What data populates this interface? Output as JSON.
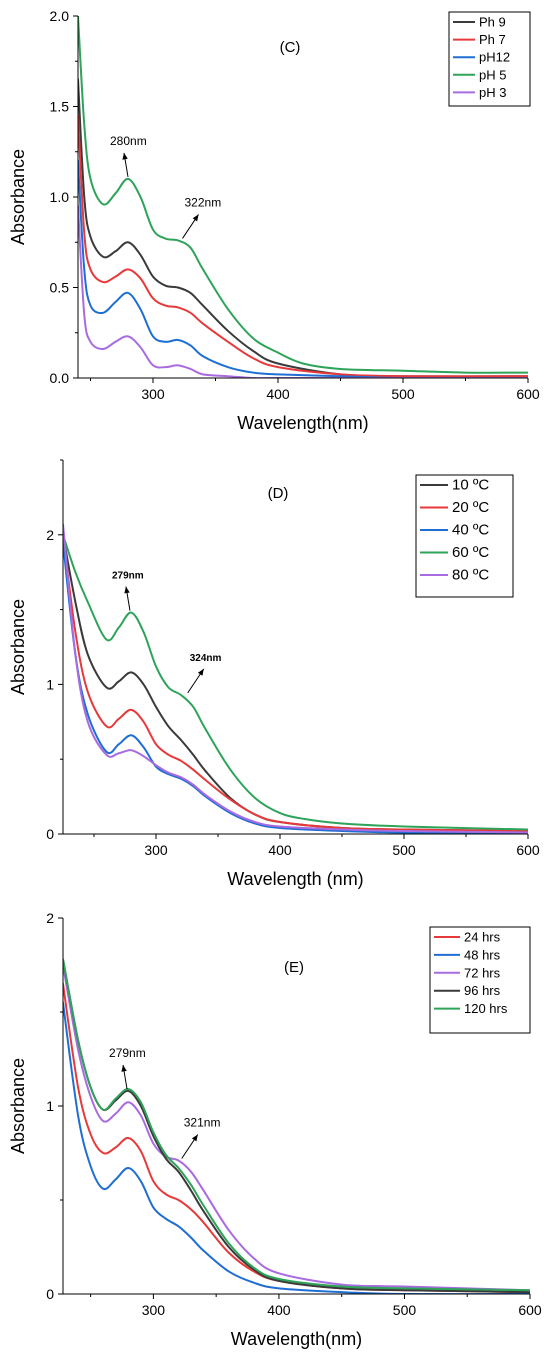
{
  "colors": {
    "black": "#3a3a3a",
    "red": "#e8393a",
    "blue": "#1f6ed4",
    "green": "#2ea35a",
    "purple": "#a86be0"
  },
  "chart_data": [
    {
      "type": "line",
      "title": "(C)",
      "xlabel": "Wavelength(nm)",
      "ylabel": "Absorbance",
      "xlim": [
        240,
        600
      ],
      "ylim": [
        0,
        2.0
      ],
      "xticks": [
        300,
        400,
        500,
        600
      ],
      "yticks": [
        0.0,
        0.5,
        1.0,
        1.5,
        2.0
      ],
      "ytick_labels": [
        "0.0",
        "0.5",
        "1.0",
        "1.5",
        "2.0"
      ],
      "grid": false,
      "legend_position": "top-right",
      "annotations": [
        {
          "text": "280nm",
          "x": 280,
          "y": 1.1
        },
        {
          "text": "322nm",
          "x": 322,
          "y": 0.76
        }
      ],
      "series": [
        {
          "name": "Ph 9",
          "color": "black",
          "x": [
            240,
            245,
            250,
            260,
            270,
            280,
            290,
            300,
            310,
            320,
            330,
            340,
            360,
            380,
            400,
            450,
            500,
            600
          ],
          "y": [
            1.65,
            1.0,
            0.78,
            0.67,
            0.7,
            0.75,
            0.68,
            0.56,
            0.51,
            0.5,
            0.47,
            0.4,
            0.26,
            0.15,
            0.08,
            0.02,
            0.01,
            0.01
          ]
        },
        {
          "name": "Ph 7",
          "color": "red",
          "x": [
            240,
            245,
            250,
            260,
            270,
            280,
            290,
            300,
            310,
            320,
            330,
            340,
            360,
            380,
            400,
            450,
            500,
            600
          ],
          "y": [
            1.45,
            0.8,
            0.6,
            0.53,
            0.56,
            0.6,
            0.55,
            0.44,
            0.4,
            0.39,
            0.36,
            0.3,
            0.2,
            0.11,
            0.06,
            0.02,
            0.01,
            0.01
          ]
        },
        {
          "name": "pH12",
          "color": "blue",
          "x": [
            240,
            245,
            250,
            260,
            270,
            280,
            290,
            300,
            310,
            320,
            330,
            340,
            360,
            380,
            400,
            450,
            500,
            600
          ],
          "y": [
            1.2,
            0.6,
            0.4,
            0.36,
            0.42,
            0.47,
            0.38,
            0.23,
            0.2,
            0.21,
            0.18,
            0.12,
            0.06,
            0.03,
            0.02,
            0.01,
            0.0,
            0.0
          ]
        },
        {
          "name": "pH 5",
          "color": "green",
          "x": [
            240,
            245,
            250,
            260,
            270,
            280,
            290,
            300,
            310,
            320,
            330,
            340,
            360,
            380,
            400,
            420,
            450,
            500,
            550,
            600
          ],
          "y": [
            2.0,
            1.4,
            1.1,
            0.96,
            1.02,
            1.1,
            1.0,
            0.82,
            0.77,
            0.76,
            0.72,
            0.6,
            0.38,
            0.22,
            0.14,
            0.08,
            0.05,
            0.04,
            0.03,
            0.03
          ]
        },
        {
          "name": "pH 3",
          "color": "purple",
          "x": [
            240,
            245,
            250,
            260,
            270,
            280,
            290,
            300,
            310,
            320,
            330,
            340,
            360,
            380,
            400,
            450,
            500,
            600
          ],
          "y": [
            0.95,
            0.35,
            0.2,
            0.16,
            0.2,
            0.23,
            0.17,
            0.07,
            0.06,
            0.07,
            0.05,
            0.02,
            0.01,
            0.0,
            0.0,
            0.0,
            0.0,
            0.0
          ]
        }
      ]
    },
    {
      "type": "line",
      "title": "(D)",
      "xlabel": "Wavelength (nm)",
      "ylabel": "Absorbance",
      "xlim": [
        225,
        600
      ],
      "ylim": [
        0,
        2.5
      ],
      "xticks": [
        300,
        400,
        500,
        600
      ],
      "yticks": [
        0,
        1,
        2
      ],
      "ytick_labels": [
        "0",
        "1",
        "2"
      ],
      "grid": false,
      "legend_position": "top-right",
      "annotations": [
        {
          "text": "279nm",
          "x": 279,
          "y": 1.48
        },
        {
          "text": "324nm",
          "x": 324,
          "y": 0.93
        }
      ],
      "series": [
        {
          "name": "10 ºC",
          "color": "black",
          "x": [
            225,
            235,
            245,
            260,
            270,
            280,
            290,
            300,
            310,
            320,
            330,
            340,
            360,
            380,
            400,
            450,
            500,
            600
          ],
          "y": [
            2.0,
            1.55,
            1.2,
            0.98,
            1.02,
            1.08,
            1.0,
            0.85,
            0.72,
            0.63,
            0.53,
            0.42,
            0.24,
            0.13,
            0.08,
            0.04,
            0.03,
            0.02
          ]
        },
        {
          "name": "20 ºC",
          "color": "red",
          "x": [
            225,
            235,
            245,
            260,
            270,
            280,
            290,
            300,
            310,
            320,
            330,
            340,
            360,
            380,
            400,
            450,
            500,
            600
          ],
          "y": [
            2.0,
            1.35,
            0.95,
            0.72,
            0.77,
            0.83,
            0.75,
            0.6,
            0.53,
            0.49,
            0.43,
            0.36,
            0.23,
            0.13,
            0.08,
            0.04,
            0.03,
            0.02
          ]
        },
        {
          "name": "40 ºC",
          "color": "blue",
          "x": [
            225,
            235,
            245,
            260,
            270,
            280,
            290,
            300,
            310,
            320,
            330,
            340,
            360,
            380,
            400,
            450,
            500,
            600
          ],
          "y": [
            1.95,
            1.2,
            0.8,
            0.55,
            0.6,
            0.66,
            0.58,
            0.45,
            0.4,
            0.37,
            0.32,
            0.25,
            0.14,
            0.07,
            0.04,
            0.02,
            0.01,
            0.01
          ]
        },
        {
          "name": "60 ºC",
          "color": "green",
          "x": [
            225,
            235,
            245,
            260,
            270,
            280,
            290,
            300,
            310,
            320,
            330,
            340,
            360,
            380,
            400,
            420,
            450,
            500,
            600
          ],
          "y": [
            2.0,
            1.75,
            1.55,
            1.3,
            1.38,
            1.48,
            1.35,
            1.12,
            0.98,
            0.93,
            0.85,
            0.7,
            0.43,
            0.24,
            0.14,
            0.1,
            0.07,
            0.05,
            0.03
          ]
        },
        {
          "name": "80 ºC",
          "color": "purple",
          "x": [
            225,
            235,
            245,
            260,
            270,
            280,
            290,
            300,
            310,
            320,
            330,
            340,
            360,
            380,
            400,
            450,
            500,
            600
          ],
          "y": [
            2.07,
            1.2,
            0.75,
            0.53,
            0.54,
            0.56,
            0.52,
            0.46,
            0.41,
            0.38,
            0.33,
            0.26,
            0.15,
            0.08,
            0.05,
            0.03,
            0.02,
            0.01
          ]
        }
      ]
    },
    {
      "type": "line",
      "title": "(E)",
      "xlabel": "Wavelength(nm)",
      "ylabel": "Absorbance",
      "xlim": [
        228,
        600
      ],
      "ylim": [
        0,
        2.0
      ],
      "xticks": [
        300,
        400,
        500,
        600
      ],
      "yticks": [
        0,
        1,
        2
      ],
      "ytick_labels": [
        "0",
        "1",
        "2"
      ],
      "grid": false,
      "legend_position": "top-right",
      "annotations": [
        {
          "text": "279nm",
          "x": 279,
          "y": 1.08
        },
        {
          "text": "321nm",
          "x": 321,
          "y": 0.71
        }
      ],
      "series": [
        {
          "name": "24 hrs",
          "color": "red",
          "x": [
            228,
            240,
            250,
            260,
            270,
            280,
            290,
            300,
            310,
            320,
            330,
            340,
            360,
            380,
            400,
            450,
            500,
            600
          ],
          "y": [
            1.65,
            1.1,
            0.85,
            0.75,
            0.78,
            0.83,
            0.76,
            0.6,
            0.53,
            0.5,
            0.45,
            0.38,
            0.22,
            0.12,
            0.07,
            0.03,
            0.02,
            0.01
          ]
        },
        {
          "name": "48 hrs",
          "color": "blue",
          "x": [
            228,
            240,
            250,
            260,
            270,
            280,
            290,
            300,
            310,
            320,
            330,
            340,
            360,
            380,
            400,
            450,
            500,
            600
          ],
          "y": [
            1.55,
            0.95,
            0.68,
            0.56,
            0.61,
            0.67,
            0.6,
            0.46,
            0.4,
            0.36,
            0.3,
            0.23,
            0.12,
            0.06,
            0.03,
            0.01,
            0.0,
            0.0
          ]
        },
        {
          "name": "72 hrs",
          "color": "purple",
          "x": [
            228,
            240,
            250,
            260,
            270,
            280,
            290,
            300,
            310,
            320,
            330,
            340,
            360,
            380,
            400,
            450,
            500,
            600
          ],
          "y": [
            1.75,
            1.3,
            1.05,
            0.92,
            0.96,
            1.02,
            0.95,
            0.8,
            0.73,
            0.71,
            0.65,
            0.55,
            0.34,
            0.19,
            0.11,
            0.05,
            0.04,
            0.02
          ]
        },
        {
          "name": "96 hrs",
          "color": "black",
          "x": [
            228,
            240,
            250,
            260,
            270,
            280,
            290,
            300,
            310,
            320,
            330,
            340,
            360,
            380,
            400,
            450,
            500,
            600
          ],
          "y": [
            1.78,
            1.35,
            1.1,
            0.98,
            1.03,
            1.08,
            1.0,
            0.84,
            0.72,
            0.65,
            0.55,
            0.44,
            0.25,
            0.13,
            0.07,
            0.03,
            0.02,
            0.01
          ]
        },
        {
          "name": "120 hrs",
          "color": "green",
          "x": [
            228,
            240,
            250,
            260,
            270,
            280,
            290,
            300,
            310,
            320,
            330,
            340,
            360,
            380,
            400,
            450,
            500,
            600
          ],
          "y": [
            1.78,
            1.35,
            1.1,
            0.98,
            1.04,
            1.09,
            1.02,
            0.86,
            0.74,
            0.67,
            0.58,
            0.47,
            0.27,
            0.14,
            0.08,
            0.04,
            0.03,
            0.02
          ]
        }
      ]
    }
  ]
}
